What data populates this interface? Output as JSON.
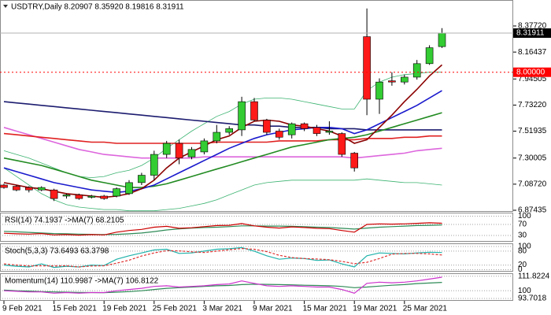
{
  "chart_data": {
    "type": "candlestick",
    "title": "USDTRY,Daily  8.20907 8.35920 8.19816 8.31911",
    "categories": [
      "9 Feb 2021",
      null,
      null,
      null,
      "15 Feb 2021",
      null,
      null,
      null,
      "19 Feb 2021",
      null,
      null,
      null,
      "25 Feb 2021",
      null,
      null,
      null,
      "3 Mar 2021",
      null,
      null,
      null,
      "9 Mar 2021",
      null,
      null,
      null,
      "15 Mar 2021",
      null,
      null,
      null,
      "19 Mar 2021",
      null,
      null,
      null,
      "25 Mar 2021",
      null,
      null,
      null
    ],
    "open": [
      7.08,
      7.07,
      7.06,
      7.04,
      7.04,
      6.99,
      7.0,
      6.98,
      6.99,
      6.99,
      7.01,
      7.1,
      7.16,
      7.33,
      7.42,
      7.31,
      7.35,
      7.44,
      7.51,
      7.53,
      7.76,
      7.61,
      7.52,
      7.49,
      7.58,
      7.55,
      7.51,
      7.5,
      7.34,
      8.29,
      7.78,
      7.93,
      7.92,
      7.96,
      8.07,
      8.20907
    ],
    "high": [
      7.09,
      7.08,
      7.07,
      7.07,
      7.05,
      7.01,
      7.01,
      7.0,
      7.0,
      7.06,
      7.12,
      7.18,
      7.36,
      7.44,
      7.45,
      7.39,
      7.46,
      7.57,
      7.56,
      7.8,
      7.79,
      7.62,
      7.54,
      7.59,
      7.59,
      7.57,
      7.6,
      7.51,
      7.35,
      8.52,
      7.95,
      8.0,
      7.98,
      8.1,
      8.22,
      8.3592
    ],
    "low": [
      7.05,
      7.03,
      7.02,
      7.03,
      6.95,
      6.97,
      6.96,
      6.97,
      6.96,
      6.98,
      7.0,
      7.08,
      7.12,
      7.3,
      7.25,
      7.29,
      7.33,
      7.42,
      7.49,
      7.48,
      7.6,
      7.49,
      7.45,
      7.46,
      7.52,
      7.48,
      7.49,
      7.31,
      7.19,
      7.65,
      7.66,
      7.89,
      7.9,
      7.94,
      8.06,
      8.19816
    ],
    "close": [
      7.06,
      7.04,
      7.04,
      7.06,
      6.97,
      7.0,
      6.97,
      6.99,
      6.97,
      7.05,
      7.1,
      7.16,
      7.33,
      7.42,
      7.3,
      7.37,
      7.44,
      7.51,
      7.54,
      7.76,
      7.61,
      7.51,
      7.47,
      7.58,
      7.54,
      7.5,
      7.52,
      7.33,
      7.22,
      7.78,
      7.92,
      7.92,
      7.96,
      8.07,
      8.2,
      8.31911
    ],
    "up_color": "#33cc33",
    "down_color": "#ff1a1a",
    "ylim": [
      6.868,
      8.589
    ],
    "yticks": [
      {
        "value": 8.3772,
        "label": "8.37720"
      },
      8.16437,
      7.94505,
      {
        "value": 7.7322,
        "label": "7.73220"
      },
      7.51935,
      7.30005,
      {
        "value": 7.0872,
        "label": "7.08720"
      },
      6.87435
    ],
    "level_line": {
      "value": 8,
      "label": "8.00000",
      "color": "#ff0000"
    },
    "price_line": 8.31911,
    "overlays": [
      {
        "color": "#3cb371",
        "values": [
          7.36,
          7.33,
          7.3,
          7.26,
          7.22,
          7.18,
          7.15,
          7.14,
          7.15,
          7.18,
          7.2,
          7.24,
          7.3,
          7.38,
          7.45,
          7.52,
          7.58,
          7.64,
          7.68,
          7.74,
          7.78,
          7.79,
          7.79,
          7.78,
          7.76,
          7.74,
          7.72,
          7.7,
          7.7,
          7.85,
          7.92,
          7.96,
          7.98,
          7.99,
          8.0,
          8.0
        ]
      },
      {
        "color": "#3cb371",
        "values": [
          7.22,
          7.15,
          7.08,
          7.01,
          6.96,
          6.92,
          6.9,
          6.89,
          6.88,
          6.88,
          6.87,
          6.87,
          6.87,
          6.88,
          6.89,
          6.91,
          6.93,
          6.96,
          7.0,
          7.04,
          7.08,
          7.1,
          7.11,
          7.12,
          7.12,
          7.12,
          7.12,
          7.12,
          7.12,
          7.13,
          7.12,
          7.11,
          7.1,
          7.1,
          7.09,
          7.08
        ]
      },
      {
        "color": "#dd66dd",
        "values": [
          7.55,
          7.52,
          7.49,
          7.46,
          7.43,
          7.4,
          7.37,
          7.35,
          7.33,
          7.32,
          7.31,
          7.3,
          7.3,
          7.3,
          7.3,
          7.3,
          7.31,
          7.31,
          7.31,
          7.31,
          7.31,
          7.31,
          7.31,
          7.31,
          7.31,
          7.31,
          7.31,
          7.31,
          7.3,
          7.31,
          7.32,
          7.33,
          7.34,
          7.36,
          7.37,
          7.38
        ]
      },
      {
        "color": "#e02020",
        "values": [
          7.5,
          7.49,
          7.48,
          7.47,
          7.46,
          7.45,
          7.44,
          7.43,
          7.43,
          7.42,
          7.42,
          7.42,
          7.42,
          7.42,
          7.42,
          7.42,
          7.42,
          7.43,
          7.43,
          7.43,
          7.43,
          7.43,
          7.44,
          7.44,
          7.44,
          7.44,
          7.45,
          7.45,
          7.45,
          7.46,
          7.46,
          7.46,
          7.47,
          7.47,
          7.48,
          7.48
        ]
      },
      {
        "color": "#1c1c70",
        "values": [
          7.76,
          7.75,
          7.74,
          7.73,
          7.72,
          7.71,
          7.7,
          7.69,
          7.68,
          7.67,
          7.66,
          7.65,
          7.64,
          7.63,
          7.62,
          7.61,
          7.6,
          7.59,
          7.58,
          7.57,
          7.57,
          7.56,
          7.56,
          7.55,
          7.55,
          7.55,
          7.54,
          7.54,
          7.54,
          7.53,
          7.53,
          7.53,
          7.53,
          7.53,
          7.53,
          7.53
        ]
      },
      {
        "color": "#228b22",
        "values": [
          7.3,
          7.28,
          7.26,
          7.24,
          7.21,
          7.18,
          7.15,
          7.12,
          7.1,
          7.08,
          7.06,
          7.06,
          7.07,
          7.09,
          7.12,
          7.15,
          7.18,
          7.21,
          7.24,
          7.27,
          7.3,
          7.33,
          7.36,
          7.39,
          7.41,
          7.43,
          7.45,
          7.46,
          7.47,
          7.49,
          7.52,
          7.55,
          7.58,
          7.61,
          7.64,
          7.67
        ]
      },
      {
        "color": "#1a1acd",
        "values": [
          7.22,
          7.19,
          7.16,
          7.13,
          7.1,
          7.08,
          7.06,
          7.04,
          7.03,
          7.02,
          7.03,
          7.05,
          7.08,
          7.13,
          7.18,
          7.23,
          7.28,
          7.33,
          7.38,
          7.42,
          7.46,
          7.49,
          7.51,
          7.53,
          7.54,
          7.55,
          7.55,
          7.54,
          7.5,
          7.53,
          7.58,
          7.63,
          7.68,
          7.73,
          7.79,
          7.85
        ]
      },
      {
        "color": "#8b0000",
        "values": [
          7.1,
          7.08,
          7.06,
          7.05,
          7.03,
          7.01,
          7.0,
          6.99,
          6.98,
          6.99,
          7.01,
          7.05,
          7.12,
          7.22,
          7.3,
          7.35,
          7.4,
          7.45,
          7.48,
          7.55,
          7.6,
          7.61,
          7.6,
          7.57,
          7.56,
          7.54,
          7.52,
          7.48,
          7.42,
          7.45,
          7.55,
          7.65,
          7.76,
          7.86,
          7.97,
          8.06
        ]
      }
    ],
    "indicators": [
      {
        "type": "line",
        "title": "RSI(14) 74.1937 ->MA(7) 68.2105",
        "ylim": [
          10,
          110
        ],
        "yticks": [
          100,
          70,
          30
        ],
        "series": [
          {
            "color": "#2e8b57",
            "values": [
              45,
              43,
              41,
              39,
              37,
              36,
              35,
              34,
              33,
              34,
              36,
              39,
              44,
              50,
              54,
              57,
              59,
              60,
              62,
              65,
              65,
              64,
              64,
              63,
              62,
              60,
              59,
              56,
              53,
              57,
              60,
              62,
              64,
              66,
              67,
              68.2105
            ]
          },
          {
            "color": "#cc0000",
            "values": [
              38,
              36,
              35,
              37,
              32,
              33,
              31,
              33,
              32,
              42,
              48,
              52,
              60,
              63,
              56,
              58,
              62,
              66,
              67,
              73,
              65,
              60,
              57,
              61,
              59,
              56,
              55,
              48,
              42,
              70,
              72,
              71,
              72,
              74,
              76,
              74.1937
            ]
          }
        ]
      },
      {
        "type": "line",
        "title": "Stoch(5,3,3) 73.6493 63.3798",
        "ylim": [
          -5,
          110
        ],
        "yticks": [
          100,
          80,
          20,
          0
        ],
        "series": [
          {
            "color": "#20b2aa",
            "values": [
              20,
              15,
              12,
              25,
              10,
              15,
              12,
              20,
              18,
              45,
              60,
              72,
              85,
              88,
              70,
              72,
              80,
              88,
              90,
              95,
              80,
              60,
              45,
              50,
              48,
              40,
              42,
              25,
              12,
              60,
              72,
              70,
              68,
              72,
              75,
              73.6493
            ]
          },
          {
            "color": "#e03030",
            "dashed": true,
            "values": [
              25,
              20,
              16,
              17,
              16,
              17,
              12,
              16,
              17,
              28,
              41,
              59,
              72,
              82,
              81,
              77,
              74,
              80,
              86,
              91,
              88,
              78,
              62,
              52,
              48,
              46,
              43,
              36,
              26,
              32,
              48,
              67,
              70,
              70,
              68,
              63.3798
            ]
          }
        ]
      },
      {
        "type": "line",
        "title": "Momentum(14) 110.9987 ->MA(7) 106.8122",
        "ylim": [
          92.4,
          113.6
        ],
        "yticks": [
          111.8224,
          100,
          93.7018
        ],
        "series": [
          {
            "color": "#2e8b57",
            "values": [
              100.5,
              100,
              99.7,
              99.3,
              99,
              98.8,
              98.6,
              98.5,
              98.4,
              98.8,
              99.3,
              100,
              101,
              102,
              102.5,
              103,
              103.5,
              104,
              104.3,
              105,
              105.3,
              105.2,
              105,
              104.8,
              104.5,
              104.3,
              104,
              103.5,
              102.5,
              103,
              103.8,
              104.5,
              105,
              105.8,
              106.3,
              106.8122
            ]
          },
          {
            "color": "#cc33cc",
            "values": [
              100,
              99.5,
              99,
              99,
              98,
              98.5,
              98,
              98.5,
              98.5,
              100,
              101,
              102,
              103.5,
              104,
              103,
              103.5,
              104,
              105,
              105.5,
              108,
              106,
              104,
              103.5,
              104,
              103.5,
              103,
              103,
              101,
              98,
              106,
              107,
              106.5,
              107,
              108,
              109.5,
              110.9987
            ]
          }
        ]
      }
    ]
  }
}
